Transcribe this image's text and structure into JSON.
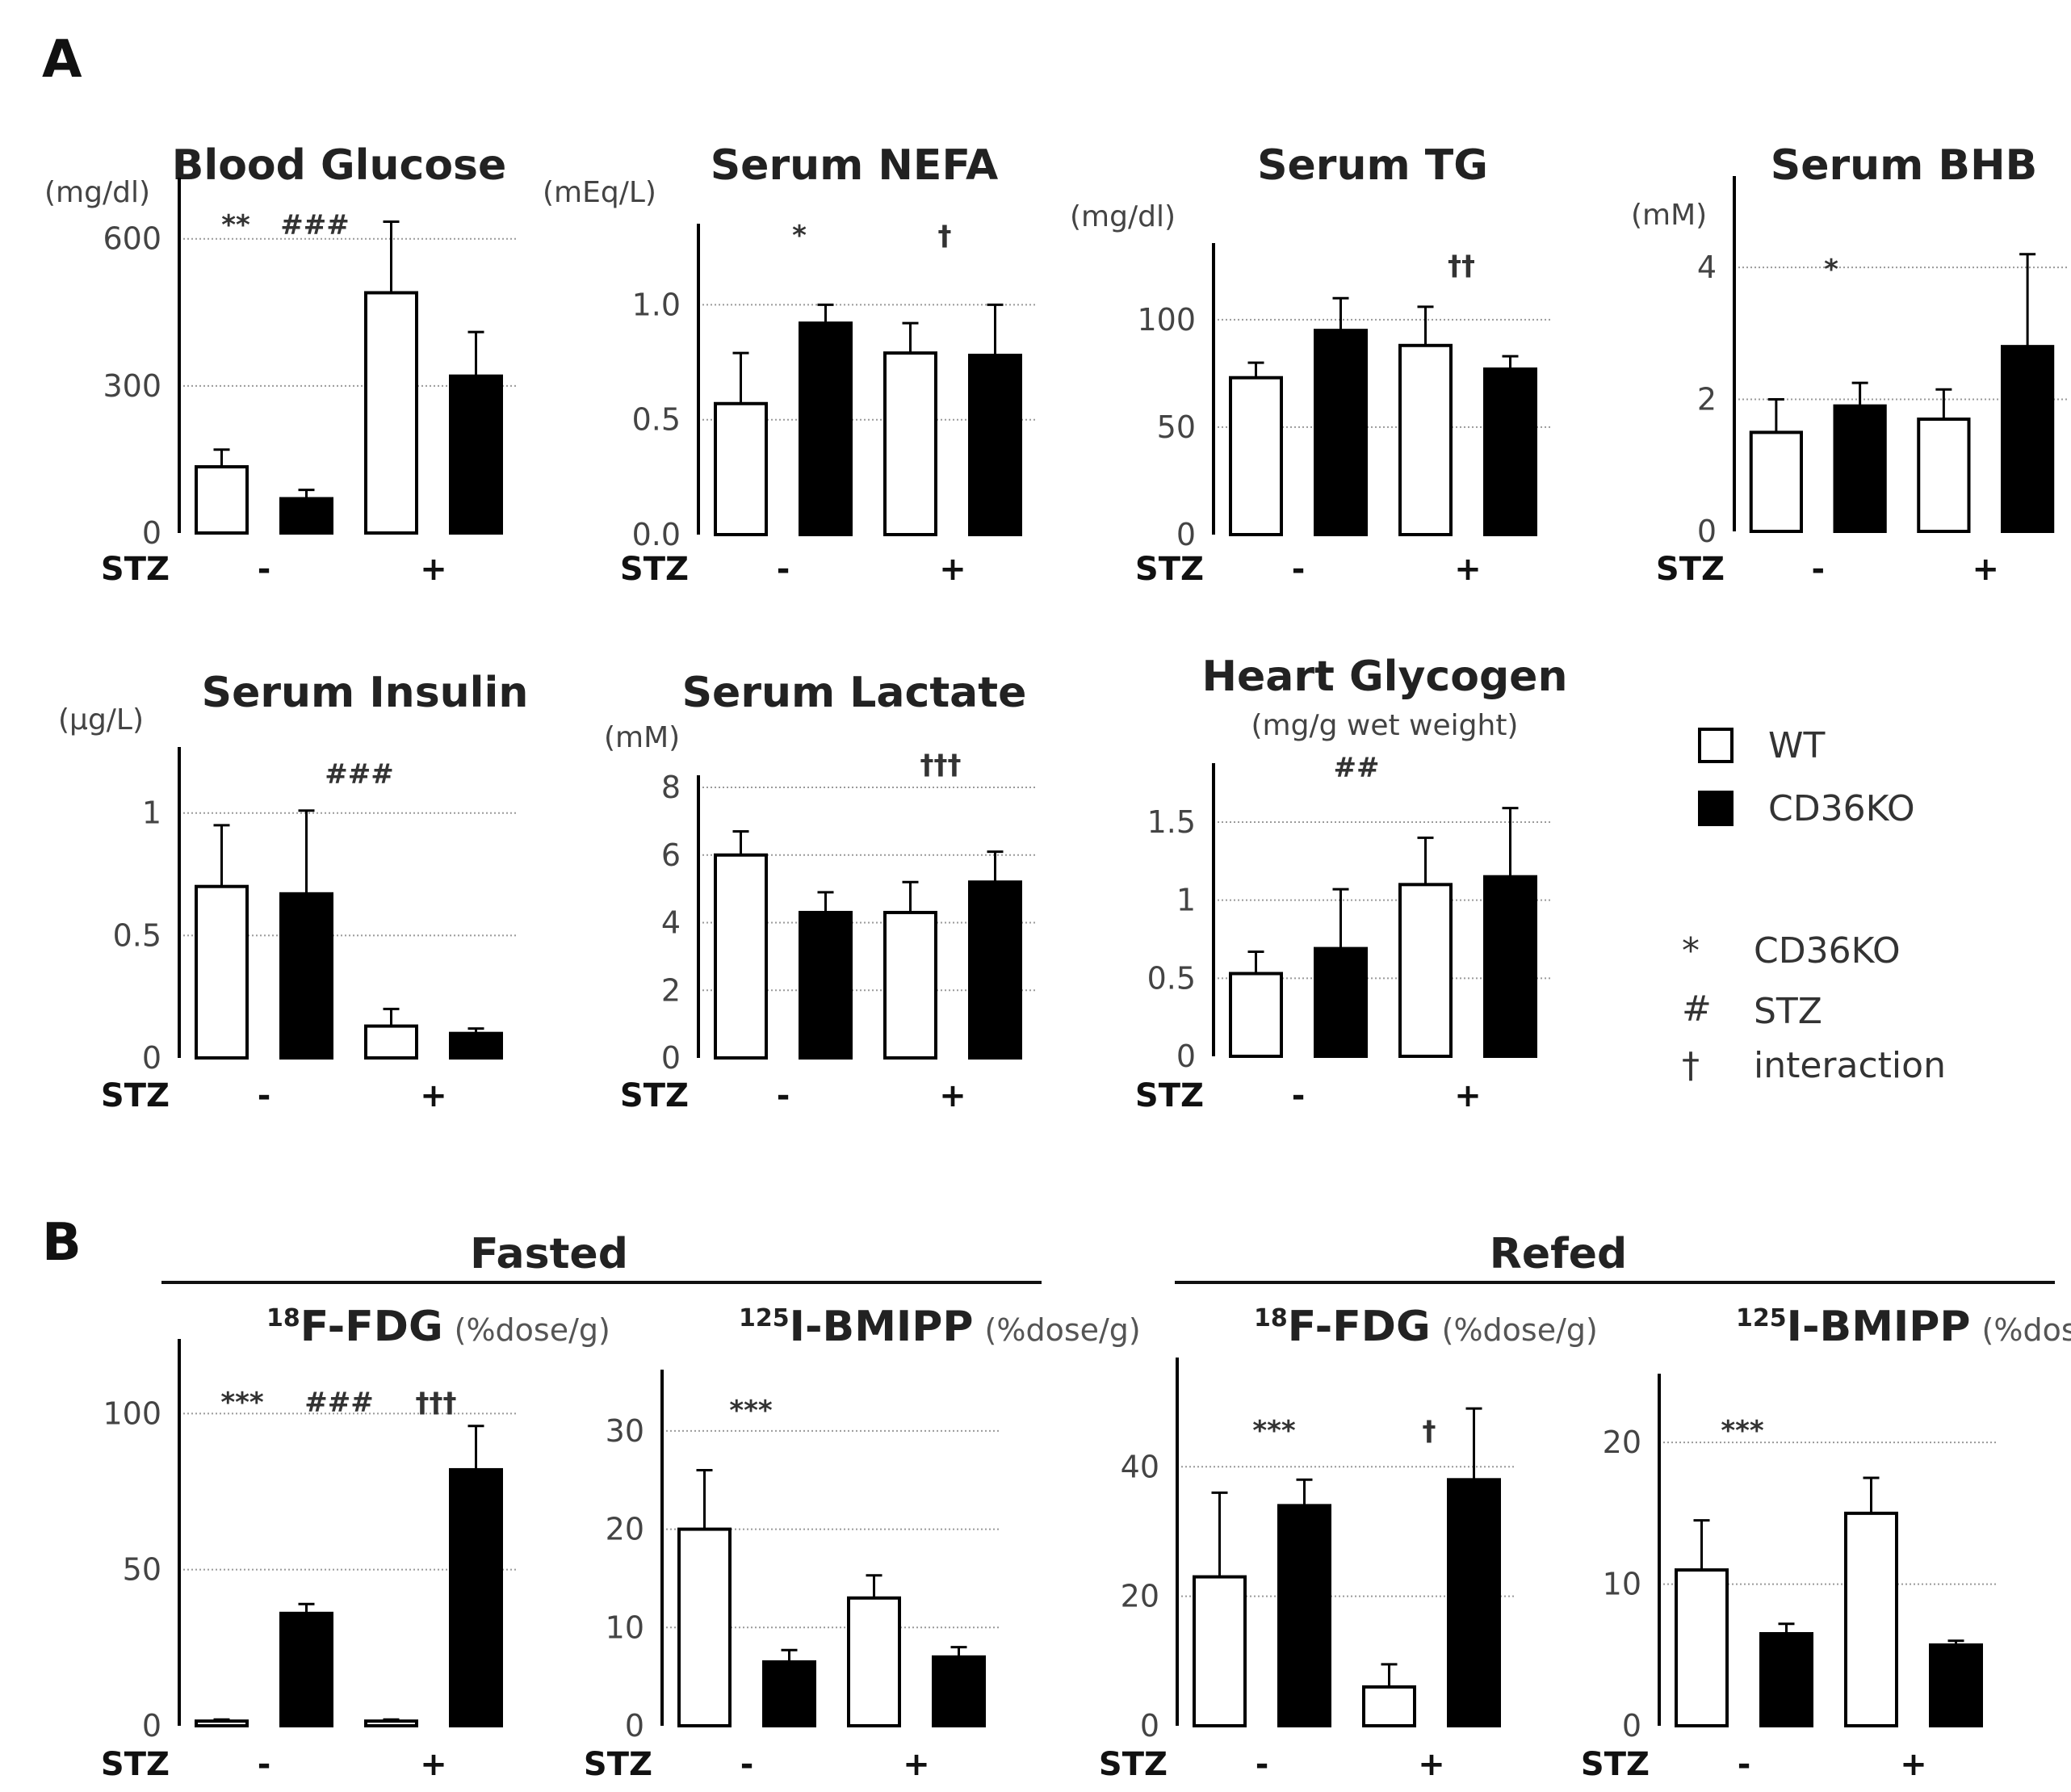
{
  "panels": [
    {
      "label": "A"
    },
    {
      "label": "B"
    }
  ],
  "legend": {
    "boxes": [
      {
        "label": "WT",
        "color": "#ffffff"
      },
      {
        "label": "CD36KO",
        "color": "#000000"
      }
    ],
    "symbols": [
      {
        "symbol": "*",
        "meaning": "CD36KO"
      },
      {
        "symbol": "#",
        "meaning": "STZ"
      },
      {
        "symbol": "†",
        "meaning": "interaction"
      }
    ]
  },
  "groups": [
    {
      "label": "Fasted"
    },
    {
      "label": "Refed"
    }
  ],
  "stz": {
    "label": "STZ",
    "minus": "-",
    "plus": "+"
  },
  "chart_data": [
    {
      "type": "bar",
      "panel": "A",
      "title": "Blood Glucose",
      "ylabel": "(mg/dl)",
      "ylim": [
        0,
        700
      ],
      "yticks": [
        "0",
        "300",
        "600"
      ],
      "ytick_values": [
        0,
        300,
        600
      ],
      "categories": [
        "- WT",
        "- CD36KO",
        "+ WT",
        "+ CD36KO"
      ],
      "series": [
        {
          "name": "mean",
          "values": [
            135,
            70,
            490,
            320
          ]
        },
        {
          "name": "error",
          "values": [
            35,
            18,
            145,
            90
          ]
        }
      ],
      "annotations": [
        "**",
        "###"
      ]
    },
    {
      "type": "bar",
      "panel": "A",
      "title": "Serum NEFA",
      "ylabel": "(mEq/L)",
      "ylim": [
        0,
        1.3
      ],
      "yticks": [
        "0.0",
        "0.5",
        "1.0"
      ],
      "ytick_values": [
        0,
        0.5,
        1.0
      ],
      "categories": [
        "- WT",
        "- CD36KO",
        "+ WT",
        "+ CD36KO"
      ],
      "series": [
        {
          "name": "mean",
          "values": [
            0.57,
            0.92,
            0.79,
            0.78
          ]
        },
        {
          "name": "error",
          "values": [
            0.22,
            0.08,
            0.13,
            0.22
          ]
        }
      ],
      "annotations": [
        "*",
        "†"
      ]
    },
    {
      "type": "bar",
      "panel": "A",
      "title": "Serum TG",
      "ylabel": "(mg/dl)",
      "ylim": [
        0,
        130
      ],
      "yticks": [
        "0",
        "50",
        "100"
      ],
      "ytick_values": [
        0,
        50,
        100
      ],
      "categories": [
        "- WT",
        "- CD36KO",
        "+ WT",
        "+ CD36KO"
      ],
      "series": [
        {
          "name": "mean",
          "values": [
            73,
            95,
            88,
            77
          ]
        },
        {
          "name": "error",
          "values": [
            7,
            15,
            18,
            6
          ]
        }
      ],
      "annotations": [
        "††"
      ]
    },
    {
      "type": "bar",
      "panel": "A",
      "title": "Serum BHB",
      "ylabel": "(mM)",
      "ylim": [
        0,
        5.2
      ],
      "yticks": [
        "0",
        "2",
        "4"
      ],
      "ytick_values": [
        0,
        2,
        4
      ],
      "categories": [
        "- WT",
        "- CD36KO",
        "+ WT",
        "+ CD36KO"
      ],
      "series": [
        {
          "name": "mean",
          "values": [
            1.5,
            1.9,
            1.7,
            2.8
          ]
        },
        {
          "name": "error",
          "values": [
            0.5,
            0.35,
            0.45,
            1.4
          ]
        }
      ],
      "annotations": [
        "*"
      ]
    },
    {
      "type": "bar",
      "panel": "A",
      "title": "Serum Insulin",
      "ylabel": "(μg/L)",
      "ylim": [
        0,
        1.22
      ],
      "yticks": [
        "0",
        "0.5",
        "1"
      ],
      "ytick_values": [
        0,
        0.5,
        1
      ],
      "categories": [
        "- WT",
        "- CD36KO",
        "+ WT",
        "+ CD36KO"
      ],
      "series": [
        {
          "name": "mean",
          "values": [
            0.7,
            0.67,
            0.13,
            0.1
          ]
        },
        {
          "name": "error",
          "values": [
            0.25,
            0.34,
            0.07,
            0.02
          ]
        }
      ],
      "annotations": [
        "###"
      ]
    },
    {
      "type": "bar",
      "panel": "A",
      "title": "Serum Lactate",
      "ylabel": "(mM)",
      "ylim": [
        0,
        8
      ],
      "yticks": [
        "0",
        "2",
        "4",
        "6",
        "8"
      ],
      "ytick_values": [
        0,
        2,
        4,
        6,
        8
      ],
      "categories": [
        "- WT",
        "- CD36KO",
        "+ WT",
        "+ CD36KO"
      ],
      "series": [
        {
          "name": "mean",
          "values": [
            6.0,
            4.3,
            4.3,
            5.2
          ]
        },
        {
          "name": "error",
          "values": [
            0.7,
            0.6,
            0.9,
            0.9
          ]
        }
      ],
      "annotations": [
        "†††"
      ]
    },
    {
      "type": "bar",
      "panel": "A",
      "title": "Heart Glycogen",
      "ylabel": "(mg/g wet weight)",
      "ylim": [
        0,
        1.8
      ],
      "yticks": [
        "0",
        "0.5",
        "1",
        "1.5"
      ],
      "ytick_values": [
        0,
        0.5,
        1,
        1.5
      ],
      "categories": [
        "- WT",
        "- CD36KO",
        "+ WT",
        "+ CD36KO"
      ],
      "series": [
        {
          "name": "mean",
          "values": [
            0.53,
            0.69,
            1.1,
            1.15
          ]
        },
        {
          "name": "error",
          "values": [
            0.14,
            0.38,
            0.3,
            0.44
          ]
        }
      ],
      "annotations": [
        "##"
      ]
    },
    {
      "type": "bar",
      "panel": "B",
      "group": "Fasted",
      "title_sup": "18",
      "title": "F-FDG",
      "unit": "(%dose/g)",
      "ylim": [
        0,
        120
      ],
      "yticks": [
        "0",
        "50",
        "100"
      ],
      "ytick_values": [
        0,
        50,
        100
      ],
      "categories": [
        "- WT",
        "- CD36KO",
        "+ WT",
        "+ CD36KO"
      ],
      "series": [
        {
          "name": "mean",
          "values": [
            1.5,
            36,
            1.5,
            82
          ]
        },
        {
          "name": "error",
          "values": [
            0.5,
            3,
            0.5,
            14
          ]
        }
      ],
      "annotations": [
        "***",
        "###",
        "†††"
      ]
    },
    {
      "type": "bar",
      "panel": "B",
      "group": "Fasted",
      "title_sup": "125",
      "title": "I-BMIPP",
      "unit": "(%dose/g)",
      "ylim": [
        0,
        35
      ],
      "yticks": [
        "0",
        "10",
        "20",
        "30"
      ],
      "ytick_values": [
        0,
        10,
        20,
        30
      ],
      "categories": [
        "- WT",
        "- CD36KO",
        "+ WT",
        "+ CD36KO"
      ],
      "series": [
        {
          "name": "mean",
          "values": [
            20,
            6.5,
            13,
            7
          ]
        },
        {
          "name": "error",
          "values": [
            6,
            1.2,
            2.3,
            1
          ]
        }
      ],
      "annotations": [
        "***"
      ]
    },
    {
      "type": "bar",
      "panel": "B",
      "group": "Refed",
      "title_sup": "18",
      "title": "F-FDG",
      "unit": "(%dose/g)",
      "ylim": [
        0,
        55
      ],
      "yticks": [
        "0",
        "20",
        "40"
      ],
      "ytick_values": [
        0,
        20,
        40
      ],
      "categories": [
        "- WT",
        "- CD36KO",
        "+ WT",
        "+ CD36KO"
      ],
      "series": [
        {
          "name": "mean",
          "values": [
            23,
            34,
            6,
            38
          ]
        },
        {
          "name": "error",
          "values": [
            13,
            4,
            3.5,
            11
          ]
        }
      ],
      "annotations": [
        "***",
        "†"
      ]
    },
    {
      "type": "bar",
      "panel": "B",
      "group": "Refed",
      "title_sup": "125",
      "title": "I-BMIPP",
      "unit": "(%dose/g)",
      "ylim": [
        0,
        24
      ],
      "yticks": [
        "0",
        "10",
        "20"
      ],
      "ytick_values": [
        0,
        10,
        20
      ],
      "categories": [
        "- WT",
        "- CD36KO",
        "+ WT",
        "+ CD36KO"
      ],
      "series": [
        {
          "name": "mean",
          "values": [
            11,
            6.5,
            15,
            5.7
          ]
        },
        {
          "name": "error",
          "values": [
            3.5,
            0.7,
            2.5,
            0.3
          ]
        }
      ],
      "annotations": [
        "***"
      ]
    }
  ]
}
